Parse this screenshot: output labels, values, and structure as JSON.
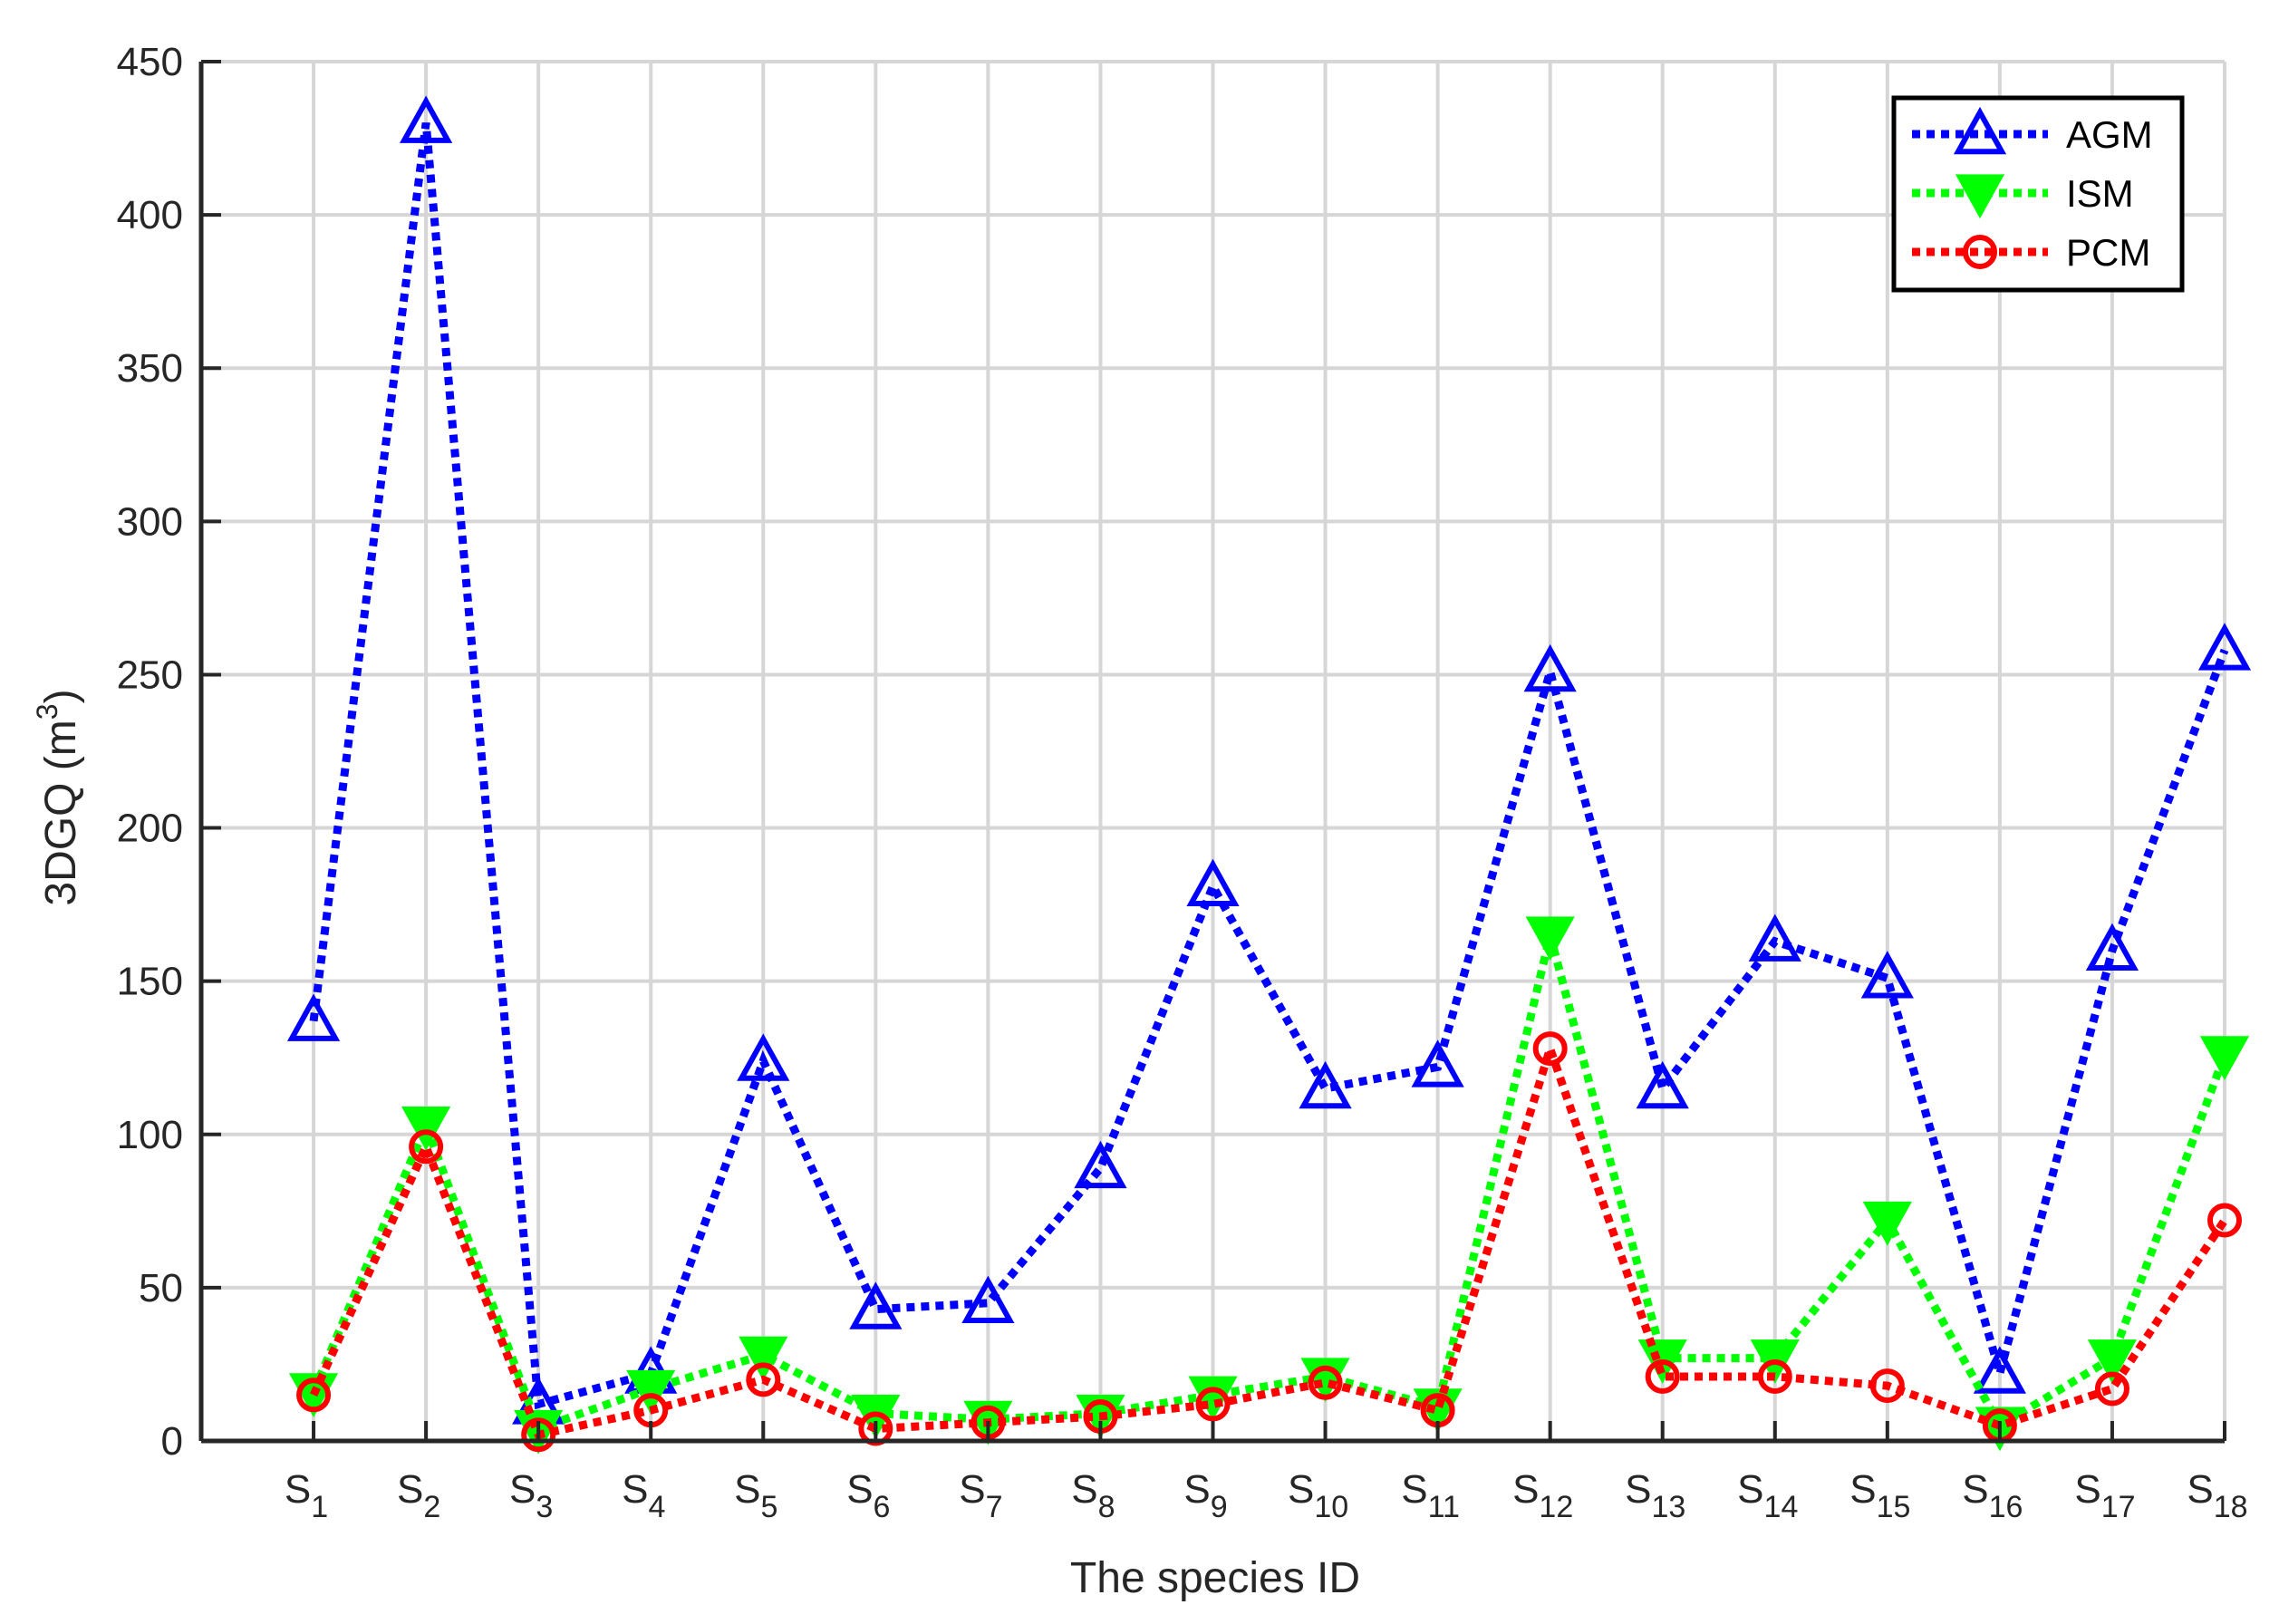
{
  "chart_data": {
    "type": "line",
    "xlabel": "The species ID",
    "ylabel_main": "3DGQ (m",
    "ylabel_sup": "3",
    "ylabel_close": ")",
    "categories": [
      {
        "base": "S",
        "sub": "1"
      },
      {
        "base": "S",
        "sub": "2"
      },
      {
        "base": "S",
        "sub": "3"
      },
      {
        "base": "S",
        "sub": "4"
      },
      {
        "base": "S",
        "sub": "5"
      },
      {
        "base": "S",
        "sub": "6"
      },
      {
        "base": "S",
        "sub": "7"
      },
      {
        "base": "S",
        "sub": "8"
      },
      {
        "base": "S",
        "sub": "9"
      },
      {
        "base": "S",
        "sub": "10"
      },
      {
        "base": "S",
        "sub": "11"
      },
      {
        "base": "S",
        "sub": "12"
      },
      {
        "base": "S",
        "sub": "13"
      },
      {
        "base": "S",
        "sub": "14"
      },
      {
        "base": "S",
        "sub": "15"
      },
      {
        "base": "S",
        "sub": "16"
      },
      {
        "base": "S",
        "sub": "17"
      },
      {
        "base": "S",
        "sub": "18"
      }
    ],
    "ylim": [
      0,
      450
    ],
    "yticks": [
      0,
      50,
      100,
      150,
      200,
      250,
      300,
      350,
      400,
      450
    ],
    "grid": true,
    "legend_position": "top-right",
    "series": [
      {
        "name": "AGM",
        "color": "#0000ff",
        "marker": "triangle-up",
        "values": [
          137,
          430,
          12,
          22,
          124,
          43,
          45,
          89,
          181,
          115,
          122,
          251,
          115,
          163,
          151,
          22,
          160,
          258
        ]
      },
      {
        "name": "ISM",
        "color": "#00ff00",
        "marker": "triangle-down",
        "values": [
          16,
          103,
          4,
          17,
          28,
          9,
          7,
          9,
          15,
          21,
          11,
          165,
          27,
          27,
          72,
          5,
          27,
          126
        ]
      },
      {
        "name": "PCM",
        "color": "#ff0000",
        "marker": "circle",
        "values": [
          15,
          96,
          2,
          10,
          20,
          4,
          6,
          8,
          12,
          19,
          10,
          128,
          21,
          21,
          18,
          5,
          17,
          72
        ]
      }
    ]
  }
}
